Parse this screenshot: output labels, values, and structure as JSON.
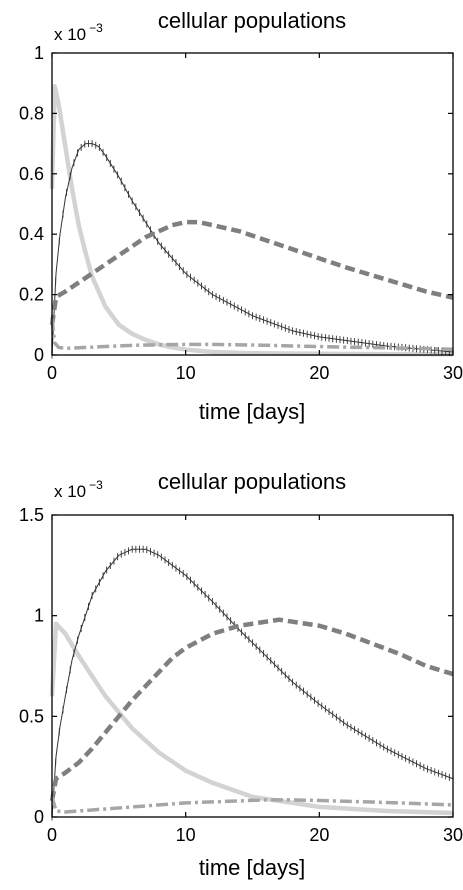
{
  "chart_data": [
    {
      "type": "line",
      "title": "cellular populations",
      "xlabel": "time [days]",
      "ylabel": "",
      "y_multiplier": "x 10",
      "y_multiplier_exp": "−3",
      "xlim": [
        0,
        30
      ],
      "ylim": [
        0,
        1
      ],
      "xticks": [
        0,
        10,
        20,
        30
      ],
      "xtick_labels": [
        "0",
        "10",
        "20",
        "30"
      ],
      "yticks": [
        0,
        0.2,
        0.4,
        0.6,
        0.8,
        1
      ],
      "ytick_labels": [
        "0",
        "0.2",
        "0.4",
        "0.6",
        "0.8",
        "1"
      ],
      "grid": false,
      "series": [
        {
          "style": "solid-light",
          "color": "#d3d3d3",
          "x": [
            0,
            0.2,
            0.5,
            1,
            1.5,
            2,
            2.5,
            3,
            4,
            5,
            6,
            7,
            8,
            9,
            10,
            12,
            15,
            20,
            25,
            30
          ],
          "y": [
            0.55,
            0.89,
            0.83,
            0.69,
            0.55,
            0.43,
            0.34,
            0.26,
            0.16,
            0.1,
            0.07,
            0.05,
            0.035,
            0.025,
            0.018,
            0.01,
            0.006,
            0.004,
            0.003,
            0.003
          ]
        },
        {
          "style": "dotted-cross",
          "color": "#333333",
          "x": [
            0,
            0.3,
            0.6,
            1,
            1.5,
            2,
            2.5,
            3,
            3.5,
            4,
            5,
            6,
            7,
            8,
            10,
            12,
            15,
            18,
            20,
            25,
            30
          ],
          "y": [
            0,
            0.27,
            0.4,
            0.52,
            0.62,
            0.68,
            0.7,
            0.7,
            0.69,
            0.66,
            0.59,
            0.51,
            0.44,
            0.37,
            0.27,
            0.2,
            0.13,
            0.08,
            0.06,
            0.03,
            0.01
          ]
        },
        {
          "style": "dashed-thick",
          "color": "#7f7f7f",
          "x": [
            0,
            0.3,
            0.6,
            1,
            2,
            3,
            4,
            5,
            6,
            7,
            8,
            9,
            10,
            11,
            12,
            14,
            16,
            18,
            20,
            22,
            25,
            28,
            30
          ],
          "y": [
            0.1,
            0.19,
            0.2,
            0.21,
            0.24,
            0.27,
            0.3,
            0.33,
            0.36,
            0.39,
            0.41,
            0.43,
            0.44,
            0.44,
            0.43,
            0.41,
            0.38,
            0.35,
            0.32,
            0.29,
            0.25,
            0.21,
            0.19
          ]
        },
        {
          "style": "dashdot",
          "color": "#a6a6a6",
          "x": [
            0,
            0.2,
            0.5,
            1,
            2,
            4,
            6,
            8,
            10,
            12,
            15,
            18,
            20,
            22,
            25,
            28,
            30
          ],
          "y": [
            0.12,
            0.04,
            0.025,
            0.022,
            0.024,
            0.028,
            0.032,
            0.034,
            0.035,
            0.035,
            0.033,
            0.03,
            0.028,
            0.026,
            0.024,
            0.021,
            0.019
          ]
        }
      ]
    },
    {
      "type": "line",
      "title": "cellular populations",
      "xlabel": "time [days]",
      "ylabel": "",
      "y_multiplier": "x 10",
      "y_multiplier_exp": "−3",
      "xlim": [
        0,
        30
      ],
      "ylim": [
        0,
        1.5
      ],
      "xticks": [
        0,
        10,
        20,
        30
      ],
      "xtick_labels": [
        "0",
        "10",
        "20",
        "30"
      ],
      "yticks": [
        0,
        0.5,
        1,
        1.5
      ],
      "ytick_labels": [
        "0",
        "0.5",
        "1",
        "1.5"
      ],
      "grid": false,
      "series": [
        {
          "style": "solid-light",
          "color": "#d3d3d3",
          "x": [
            0,
            0.3,
            1,
            2,
            3,
            4,
            5,
            6,
            7,
            8,
            10,
            12,
            15,
            18,
            20,
            25,
            30
          ],
          "y": [
            0.6,
            0.96,
            0.91,
            0.8,
            0.7,
            0.6,
            0.52,
            0.44,
            0.38,
            0.32,
            0.23,
            0.17,
            0.1,
            0.07,
            0.05,
            0.03,
            0.02
          ]
        },
        {
          "style": "dotted-cross",
          "color": "#333333",
          "x": [
            0,
            0.3,
            0.6,
            1,
            1.5,
            2,
            3,
            4,
            5,
            6,
            7,
            8,
            9,
            10,
            12,
            14,
            16,
            18,
            20,
            22,
            25,
            28,
            30
          ],
          "y": [
            0,
            0.3,
            0.45,
            0.6,
            0.78,
            0.9,
            1.1,
            1.22,
            1.3,
            1.33,
            1.33,
            1.3,
            1.25,
            1.2,
            1.07,
            0.93,
            0.8,
            0.67,
            0.56,
            0.46,
            0.34,
            0.24,
            0.19
          ]
        },
        {
          "style": "dashed-thick",
          "color": "#7f7f7f",
          "x": [
            0,
            0.3,
            1,
            2,
            3,
            4,
            5,
            6,
            7,
            8,
            9,
            10,
            12,
            14,
            16,
            17,
            18,
            20,
            22,
            24,
            26,
            28,
            30
          ],
          "y": [
            0.08,
            0.19,
            0.22,
            0.27,
            0.34,
            0.42,
            0.5,
            0.58,
            0.65,
            0.72,
            0.79,
            0.84,
            0.91,
            0.95,
            0.97,
            0.98,
            0.97,
            0.95,
            0.91,
            0.86,
            0.81,
            0.75,
            0.71
          ]
        },
        {
          "style": "dashdot",
          "color": "#a6a6a6",
          "x": [
            0,
            0.3,
            1,
            2,
            4,
            6,
            8,
            10,
            12,
            14,
            16,
            18,
            20,
            22,
            25,
            28,
            30
          ],
          "y": [
            0.1,
            0.03,
            0.025,
            0.03,
            0.04,
            0.05,
            0.06,
            0.07,
            0.075,
            0.08,
            0.085,
            0.085,
            0.082,
            0.078,
            0.072,
            0.065,
            0.06
          ]
        }
      ]
    }
  ]
}
